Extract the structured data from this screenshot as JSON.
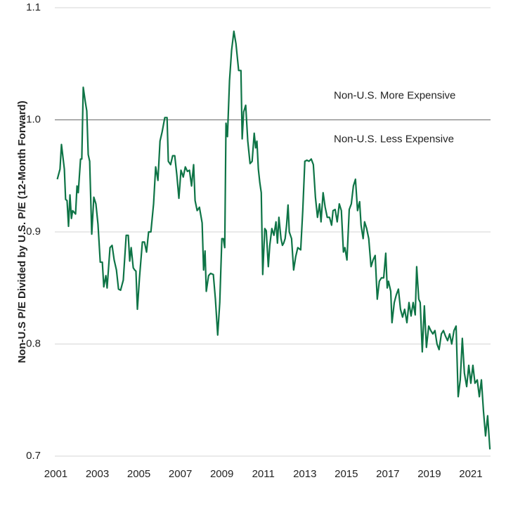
{
  "chart_data": {
    "type": "line",
    "ylabel": "Non-U.S P/E  Divided by U.S. P/E (12-Month Forward)",
    "annotations": [
      "Non-U.S. More Expensive",
      "Non-U.S. Less Expensive"
    ],
    "reference_line": 1.0,
    "color": "#0e7446",
    "grid": true,
    "xlim": [
      2000.95,
      2021.95
    ],
    "xticks": [
      2001,
      2003,
      2005,
      2007,
      2009,
      2011,
      2013,
      2015,
      2017,
      2019,
      2021
    ],
    "ylim": [
      0.7,
      1.1
    ],
    "yticks": [
      0.7,
      0.8,
      0.9,
      {
        "value": 1.0,
        "label": "1.0"
      },
      1.1
    ],
    "x": [
      2001.07,
      2001.2,
      2001.27,
      2001.41,
      2001.47,
      2001.54,
      2001.61,
      2001.68,
      2001.75,
      2001.81,
      2001.95,
      2002.02,
      2002.08,
      2002.19,
      2002.25,
      2002.32,
      2002.42,
      2002.49,
      2002.56,
      2002.63,
      2002.73,
      2002.83,
      2002.93,
      2003.03,
      2003.14,
      2003.24,
      2003.31,
      2003.41,
      2003.47,
      2003.61,
      2003.71,
      2003.81,
      2003.92,
      2004.02,
      2004.12,
      2004.25,
      2004.39,
      2004.49,
      2004.56,
      2004.63,
      2004.73,
      2004.8,
      2004.86,
      2004.93,
      2005.03,
      2005.17,
      2005.27,
      2005.37,
      2005.47,
      2005.58,
      2005.71,
      2005.81,
      2005.92,
      2006.02,
      2006.12,
      2006.25,
      2006.36,
      2006.42,
      2006.53,
      2006.63,
      2006.73,
      2006.83,
      2006.93,
      2007.03,
      2007.14,
      2007.24,
      2007.34,
      2007.44,
      2007.54,
      2007.64,
      2007.71,
      2007.81,
      2007.92,
      2008.05,
      2008.12,
      2008.19,
      2008.25,
      2008.36,
      2008.46,
      2008.59,
      2008.69,
      2008.8,
      2008.9,
      2009.0,
      2009.07,
      2009.14,
      2009.2,
      2009.27,
      2009.37,
      2009.47,
      2009.58,
      2009.68,
      2009.81,
      2009.92,
      2009.98,
      2010.05,
      2010.15,
      2010.25,
      2010.36,
      2010.46,
      2010.56,
      2010.63,
      2010.69,
      2010.76,
      2010.83,
      2010.9,
      2010.97,
      2011.07,
      2011.14,
      2011.24,
      2011.31,
      2011.41,
      2011.51,
      2011.61,
      2011.68,
      2011.75,
      2011.85,
      2011.92,
      2011.98,
      2012.05,
      2012.12,
      2012.19,
      2012.25,
      2012.36,
      2012.46,
      2012.56,
      2012.66,
      2012.8,
      2012.9,
      2013.0,
      2013.1,
      2013.2,
      2013.31,
      2013.41,
      2013.51,
      2013.61,
      2013.71,
      2013.78,
      2013.88,
      2013.98,
      2014.08,
      2014.19,
      2014.29,
      2014.36,
      2014.46,
      2014.56,
      2014.66,
      2014.76,
      2014.86,
      2014.93,
      2015.03,
      2015.14,
      2015.24,
      2015.34,
      2015.44,
      2015.54,
      2015.64,
      2015.71,
      2015.81,
      2015.88,
      2015.98,
      2016.08,
      2016.19,
      2016.29,
      2016.39,
      2016.49,
      2016.59,
      2016.69,
      2016.8,
      2016.9,
      2016.97,
      2017.03,
      2017.14,
      2017.2,
      2017.31,
      2017.41,
      2017.51,
      2017.61,
      2017.71,
      2017.81,
      2017.92,
      2018.02,
      2018.12,
      2018.22,
      2018.32,
      2018.39,
      2018.49,
      2018.56,
      2018.66,
      2018.76,
      2018.86,
      2018.97,
      2019.07,
      2019.17,
      2019.27,
      2019.37,
      2019.47,
      2019.58,
      2019.68,
      2019.78,
      2019.88,
      2019.98,
      2020.08,
      2020.19,
      2020.29,
      2020.39,
      2020.49,
      2020.59,
      2020.69,
      2020.8,
      2020.9,
      2021.0,
      2021.1,
      2021.2,
      2021.31,
      2021.41,
      2021.51,
      2021.61,
      2021.71,
      2021.81,
      2021.92
    ],
    "values": [
      0.947,
      0.956,
      0.978,
      0.956,
      0.929,
      0.928,
      0.905,
      0.933,
      0.912,
      0.919,
      0.916,
      0.941,
      0.935,
      0.965,
      0.965,
      1.029,
      1.016,
      1.008,
      0.969,
      0.963,
      0.898,
      0.931,
      0.925,
      0.907,
      0.873,
      0.873,
      0.851,
      0.861,
      0.85,
      0.886,
      0.888,
      0.875,
      0.866,
      0.849,
      0.848,
      0.857,
      0.897,
      0.897,
      0.874,
      0.886,
      0.868,
      0.866,
      0.865,
      0.831,
      0.859,
      0.891,
      0.891,
      0.882,
      0.9,
      0.9,
      0.925,
      0.958,
      0.946,
      0.981,
      0.989,
      1.002,
      1.002,
      0.963,
      0.96,
      0.968,
      0.968,
      0.951,
      0.93,
      0.955,
      0.949,
      0.958,
      0.954,
      0.955,
      0.941,
      0.96,
      0.928,
      0.919,
      0.922,
      0.908,
      0.866,
      0.883,
      0.847,
      0.861,
      0.863,
      0.862,
      0.84,
      0.808,
      0.837,
      0.894,
      0.894,
      0.886,
      0.997,
      0.985,
      1.035,
      1.062,
      1.079,
      1.068,
      1.044,
      1.044,
      0.983,
      1.007,
      1.013,
      0.981,
      0.961,
      0.963,
      0.988,
      0.975,
      0.981,
      0.956,
      0.944,
      0.935,
      0.862,
      0.903,
      0.901,
      0.869,
      0.888,
      0.903,
      0.897,
      0.909,
      0.89,
      0.913,
      0.894,
      0.888,
      0.89,
      0.894,
      0.906,
      0.924,
      0.9,
      0.894,
      0.866,
      0.878,
      0.886,
      0.884,
      0.919,
      0.963,
      0.964,
      0.963,
      0.965,
      0.96,
      0.931,
      0.913,
      0.925,
      0.909,
      0.935,
      0.922,
      0.913,
      0.913,
      0.906,
      0.919,
      0.92,
      0.909,
      0.925,
      0.919,
      0.882,
      0.886,
      0.875,
      0.92,
      0.925,
      0.941,
      0.947,
      0.919,
      0.927,
      0.906,
      0.894,
      0.909,
      0.903,
      0.894,
      0.869,
      0.875,
      0.879,
      0.84,
      0.856,
      0.859,
      0.859,
      0.881,
      0.85,
      0.856,
      0.847,
      0.819,
      0.837,
      0.844,
      0.849,
      0.831,
      0.824,
      0.831,
      0.819,
      0.837,
      0.825,
      0.837,
      0.826,
      0.869,
      0.84,
      0.837,
      0.793,
      0.834,
      0.797,
      0.816,
      0.812,
      0.809,
      0.812,
      0.8,
      0.795,
      0.809,
      0.812,
      0.807,
      0.803,
      0.809,
      0.8,
      0.812,
      0.816,
      0.753,
      0.768,
      0.805,
      0.774,
      0.762,
      0.781,
      0.765,
      0.781,
      0.765,
      0.768,
      0.753,
      0.768,
      0.74,
      0.718,
      0.736,
      0.706
    ]
  }
}
